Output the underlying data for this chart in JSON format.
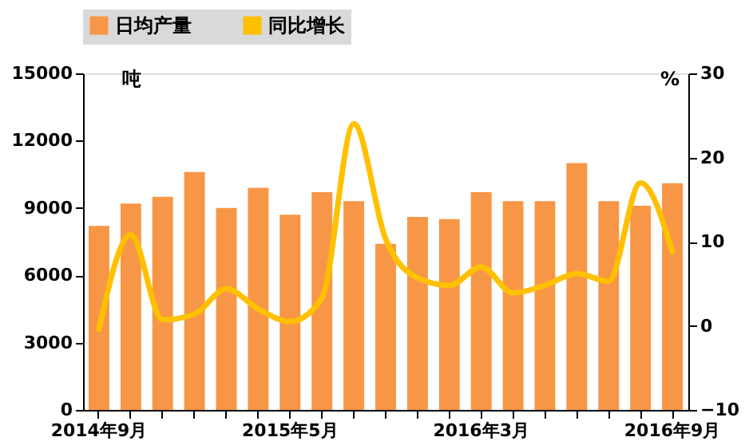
{
  "chart_data": {
    "type": "bar",
    "categories": [
      "2014年9月",
      null,
      null,
      null,
      null,
      null,
      "2015年5月",
      null,
      null,
      null,
      null,
      null,
      "2016年3月",
      null,
      null,
      null,
      null,
      null,
      "2016年9月"
    ],
    "series": [
      {
        "name": "日均产量",
        "color": "#f79646",
        "values": [
          8200,
          9200,
          9500,
          10600,
          9000,
          9900,
          8700,
          9700,
          9300,
          7400,
          8600,
          8500,
          9700,
          9300,
          9300,
          11000,
          9300,
          9100,
          10100
        ]
      },
      {
        "name": "同比增长",
        "type": "line",
        "axis": "y2",
        "color": "#ffc000",
        "values": [
          -0.4,
          10.8,
          0.7,
          1.4,
          4.4,
          2.0,
          0.5,
          3.3,
          24,
          10.3,
          5.7,
          4.8,
          7.0,
          3.9,
          4.8,
          6.2,
          5.3,
          17,
          8.8
        ]
      }
    ],
    "ylabel": "吨",
    "y2label": "%",
    "ylim": [
      0,
      15000
    ],
    "yticks": [
      0,
      3000,
      6000,
      9000,
      12000,
      15000
    ],
    "y2lim": [
      -10,
      30
    ],
    "y2ticks": [
      -10,
      0,
      10,
      20,
      30
    ],
    "grid": false,
    "legend": "top"
  }
}
